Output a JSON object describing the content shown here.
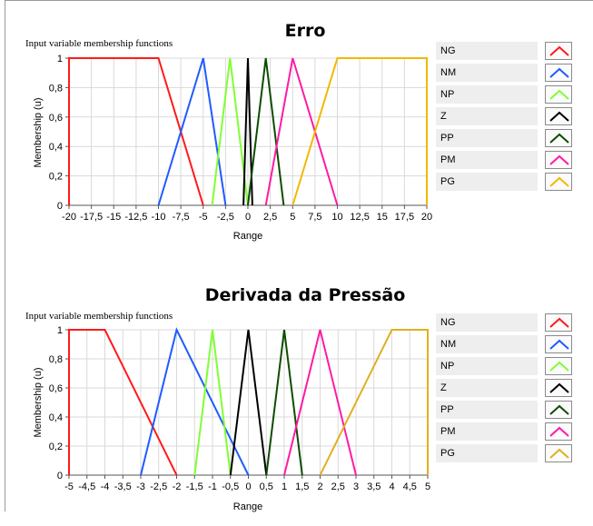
{
  "chart_data": [
    {
      "type": "line",
      "title": "Erro",
      "subtitle": "Input variable membership functions",
      "xlabel": "Range",
      "ylabel": "Membership (u)",
      "xlim": [
        -20,
        20
      ],
      "ylim": [
        0,
        1
      ],
      "xticks": [
        -20,
        -17.5,
        -15,
        -12.5,
        -10,
        -7.5,
        -5,
        -2.5,
        0,
        2.5,
        5,
        7.5,
        10,
        12.5,
        15,
        17.5,
        20
      ],
      "xtick_labels": [
        "-20",
        "-17,5",
        "-15",
        "-12,5",
        "-10",
        "-7,5",
        "-5",
        "-2,5",
        "0",
        "2,5",
        "5",
        "7,5",
        "10",
        "12,5",
        "15",
        "17,5",
        "20"
      ],
      "yticks": [
        0,
        0.2,
        0.4,
        0.6,
        0.8,
        1
      ],
      "ytick_labels": [
        "0",
        "0,2",
        "0,4",
        "0,6",
        "0,8",
        "1"
      ],
      "grid": true,
      "legend": "right",
      "series": [
        {
          "name": "NG",
          "color": "#ff1a1a",
          "points": [
            [
              -20,
              0
            ],
            [
              -20,
              1
            ],
            [
              -10,
              1
            ],
            [
              -5,
              0
            ]
          ]
        },
        {
          "name": "NM",
          "color": "#1f5bff",
          "points": [
            [
              -10,
              0
            ],
            [
              -5,
              1
            ],
            [
              -2.5,
              0
            ]
          ]
        },
        {
          "name": "NP",
          "color": "#80ff33",
          "points": [
            [
              -4,
              0
            ],
            [
              -2,
              1
            ],
            [
              0,
              0
            ]
          ]
        },
        {
          "name": "Z",
          "color": "#000000",
          "points": [
            [
              -0.5,
              0
            ],
            [
              0,
              1
            ],
            [
              0.5,
              0
            ]
          ]
        },
        {
          "name": "PP",
          "color": "#0d4d00",
          "points": [
            [
              0,
              0
            ],
            [
              2,
              1
            ],
            [
              4,
              0
            ]
          ]
        },
        {
          "name": "PM",
          "color": "#ff1aa5",
          "points": [
            [
              2,
              0
            ],
            [
              5,
              1
            ],
            [
              10,
              0
            ]
          ]
        },
        {
          "name": "PG",
          "color": "#f2b800",
          "points": [
            [
              5,
              0
            ],
            [
              10,
              1
            ],
            [
              20,
              1
            ],
            [
              20,
              0
            ]
          ]
        }
      ]
    },
    {
      "type": "line",
      "title": "Derivada da Pressão",
      "subtitle": "Input variable membership functions",
      "xlabel": "Range",
      "ylabel": "Membership (u)",
      "xlim": [
        -5,
        5
      ],
      "ylim": [
        0,
        1
      ],
      "xticks": [
        -5,
        -4.5,
        -4,
        -3.5,
        -3,
        -2.5,
        -2,
        -1.5,
        -1,
        -0.5,
        0,
        0.5,
        1,
        1.5,
        2,
        2.5,
        3,
        3.5,
        4,
        4.5,
        5
      ],
      "xtick_labels": [
        "-5",
        "-4,5",
        "-4",
        "-3,5",
        "-3",
        "-2,5",
        "-2",
        "-1,5",
        "-1",
        "-0,5",
        "0",
        "0,5",
        "1",
        "1,5",
        "2",
        "2,5",
        "3",
        "3,5",
        "4",
        "4,5",
        "5"
      ],
      "yticks": [
        0,
        0.2,
        0.4,
        0.6,
        0.8,
        1
      ],
      "ytick_labels": [
        "0",
        "0,2",
        "0,4",
        "0,6",
        "0,8",
        "1"
      ],
      "grid": true,
      "legend": "right",
      "series": [
        {
          "name": "NG",
          "color": "#ff1a1a",
          "points": [
            [
              -5,
              0
            ],
            [
              -5,
              1
            ],
            [
              -4,
              1
            ],
            [
              -2,
              0
            ]
          ]
        },
        {
          "name": "NM",
          "color": "#1f5bff",
          "points": [
            [
              -3,
              0
            ],
            [
              -2,
              1
            ],
            [
              0,
              0
            ]
          ]
        },
        {
          "name": "NP",
          "color": "#80ff33",
          "points": [
            [
              -1.5,
              0
            ],
            [
              -1,
              1
            ],
            [
              -0.5,
              0
            ]
          ]
        },
        {
          "name": "Z",
          "color": "#000000",
          "points": [
            [
              -0.5,
              0
            ],
            [
              0,
              1
            ],
            [
              0.5,
              0
            ]
          ]
        },
        {
          "name": "PP",
          "color": "#0d4d00",
          "points": [
            [
              0.5,
              0
            ],
            [
              1,
              1
            ],
            [
              1.5,
              0
            ]
          ]
        },
        {
          "name": "PM",
          "color": "#ff1aa5",
          "points": [
            [
              1,
              0
            ],
            [
              2,
              1
            ],
            [
              3,
              0
            ]
          ]
        },
        {
          "name": "PG",
          "color": "#e0b020",
          "points": [
            [
              2,
              0
            ],
            [
              4,
              1
            ],
            [
              5,
              1
            ],
            [
              5,
              0
            ]
          ]
        }
      ]
    }
  ]
}
